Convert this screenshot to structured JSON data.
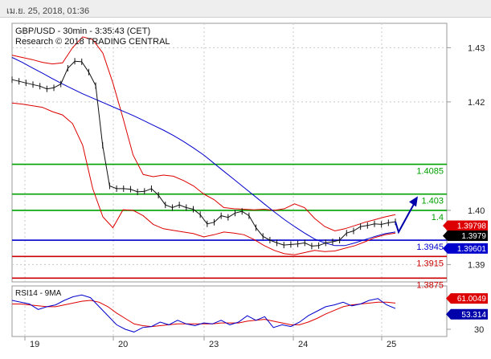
{
  "header_date": "เม.ย. 25, 2018, 01:36",
  "chart_data": [
    {
      "type": "line",
      "title": "GBP/USD - 30min - 3:35:43 (CET)",
      "subtitle": "Research © 2018 TRADING CENTRAL",
      "x_ticks": [
        "19",
        "20",
        "23",
        "24",
        "25"
      ],
      "y_ticks": [
        "1.43",
        "1.42",
        "1.40",
        "1.39"
      ],
      "ylim": [
        1.3868,
        1.4345
      ],
      "grid": true,
      "price_series": [
        1.4241,
        1.4238,
        1.4235,
        1.4232,
        1.4229,
        1.4224,
        1.4226,
        1.4233,
        1.4262,
        1.4275,
        1.4274,
        1.4255,
        1.423,
        1.412,
        1.4045,
        1.404,
        1.404,
        1.4039,
        1.4034,
        1.4035,
        1.404,
        1.4028,
        1.401,
        1.4005,
        1.401,
        1.4005,
        1.4002,
        1.3992,
        1.3975,
        1.3978,
        1.399,
        1.3987,
        1.3995,
        1.3998,
        1.399,
        1.3968,
        1.3952,
        1.3945,
        1.394,
        1.3936,
        1.3937,
        1.3938,
        1.394,
        1.3934,
        1.3935,
        1.394,
        1.3942,
        1.3945,
        1.3958,
        1.3962,
        1.397,
        1.3972,
        1.3975,
        1.3974,
        1.3977,
        1.3979
      ],
      "ma_blue": [
        1.4282,
        1.4273,
        1.4263,
        1.4253,
        1.4243,
        1.4233,
        1.4224,
        1.4215,
        1.4207,
        1.4199,
        1.4191,
        1.4183,
        1.4175,
        1.4166,
        1.4157,
        1.4148,
        1.4138,
        1.4127,
        1.4115,
        1.4102,
        1.4087,
        1.4072,
        1.4057,
        1.4042,
        1.4027,
        1.4012,
        1.3997,
        1.3983,
        1.397,
        1.3958,
        1.3947,
        1.394,
        1.3935,
        1.3935,
        1.394,
        1.3946,
        1.3952,
        1.3957,
        1.396
      ],
      "bollinger_upper": [
        1.4286,
        1.4282,
        1.4278,
        1.4273,
        1.427,
        1.4272,
        1.43,
        1.432,
        1.4315,
        1.429,
        1.4235,
        1.417,
        1.4102,
        1.4066,
        1.4062,
        1.4065,
        1.4063,
        1.4055,
        1.4045,
        1.403,
        1.402,
        1.4005,
        1.4003,
        1.4002,
        1.4001,
        1.4002,
        1.4,
        1.4003,
        1.4012,
        1.4005,
        1.3985,
        1.397,
        1.3962,
        1.3966,
        1.3972,
        1.3978,
        1.3983,
        1.3988,
        1.3992
      ],
      "bollinger_lower": [
        1.4198,
        1.4196,
        1.4193,
        1.419,
        1.4182,
        1.4176,
        1.416,
        1.412,
        1.404,
        1.3988,
        1.3968,
        1.4001,
        1.4,
        1.399,
        1.3974,
        1.3966,
        1.3963,
        1.396,
        1.3957,
        1.3951,
        1.3955,
        1.396,
        1.3958,
        1.3955,
        1.3946,
        1.3935,
        1.3926,
        1.392,
        1.3918,
        1.3922,
        1.3926,
        1.3924,
        1.3925,
        1.393,
        1.3935,
        1.3942,
        1.395,
        1.3955,
        1.3958
      ],
      "levels": [
        {
          "value": 1.4085,
          "label": "1.4085",
          "color": "#00a000"
        },
        {
          "value": 1.403,
          "label": "1.403",
          "color": "#00a000"
        },
        {
          "value": 1.4,
          "label": "1.4",
          "color": "#00a000"
        },
        {
          "value": 1.3945,
          "label": "1.3945",
          "color": "#0000cc"
        },
        {
          "value": 1.3915,
          "label": "1.3915",
          "color": "#cc0000"
        },
        {
          "value": 1.3875,
          "label": "1.3875",
          "color": "#cc0000"
        }
      ],
      "tags": [
        {
          "value": 1.39798,
          "label": "1.39798",
          "bg": "#dd0000",
          "fg": "#ffffff"
        },
        {
          "value": 1.3979,
          "label": "1.3979",
          "bg": "#000000",
          "fg": "#ffffff"
        },
        {
          "value": 1.39601,
          "label": "1.39601",
          "bg": "#0000cc",
          "fg": "#ffffff"
        }
      ],
      "forecast_arrow": {
        "from": 1.396,
        "to": 1.4026,
        "color": "#0000aa"
      }
    },
    {
      "type": "line",
      "title": "RSI14 - 9MA",
      "y_ticks": [
        "30"
      ],
      "ylim": [
        22,
        78
      ],
      "rsi": [
        62,
        60,
        58,
        52,
        55,
        57,
        62,
        66,
        68,
        65,
        55,
        45,
        35,
        30,
        27,
        32,
        33,
        38,
        35,
        40,
        36,
        34,
        37,
        36,
        40,
        35,
        38,
        45,
        40,
        44,
        32,
        35,
        33,
        38,
        45,
        50,
        55,
        57,
        60,
        56,
        58,
        62,
        64,
        57,
        53
      ],
      "rsi_ma": [
        58,
        58,
        57,
        56,
        55,
        55,
        57,
        59,
        61,
        62,
        60,
        55,
        48,
        42,
        36,
        34,
        33,
        34,
        35,
        36,
        36,
        36,
        36,
        36,
        37,
        37,
        37,
        39,
        40,
        41,
        39,
        37,
        35,
        35,
        38,
        42,
        47,
        51,
        55,
        57,
        58,
        59,
        60,
        60,
        59
      ],
      "tags": [
        {
          "value": 61.0049,
          "label": "61.0049",
          "bg": "#dd0000",
          "fg": "#ffffff"
        },
        {
          "value": 53.314,
          "label": "53.314",
          "bg": "#0000aa",
          "fg": "#ffffff"
        }
      ]
    }
  ],
  "colors": {
    "grid": "#c8c8c8",
    "price": "#111111",
    "ma_blue": "#0000cc",
    "bands": "#dd0000",
    "axis": "#999999"
  }
}
